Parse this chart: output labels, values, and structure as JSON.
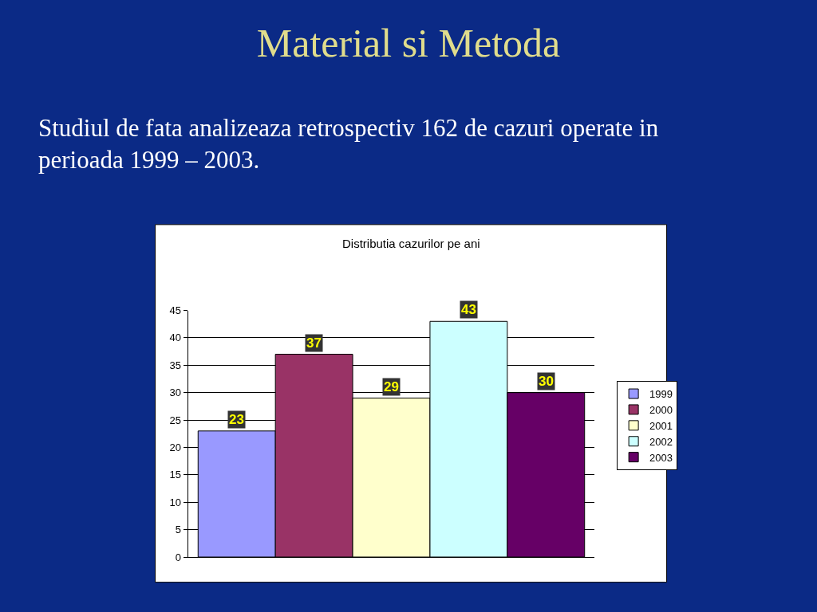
{
  "chart_data": {
    "type": "bar",
    "title": "Material si Metoda",
    "subtitle": "Studiul de fata analizeaza retrospectiv 162 de cazuri operate in perioada 1999 – 2003.",
    "annotations": [
      "Distributia cazurilor pe ani"
    ],
    "categories": [
      null
    ],
    "series": [
      {
        "name": "1999",
        "color": "#9999ff",
        "values": [
          23
        ]
      },
      {
        "name": "2000",
        "color": "#993366",
        "values": [
          37
        ]
      },
      {
        "name": "2001",
        "color": "#ffffcc",
        "values": [
          29
        ]
      },
      {
        "name": "2002",
        "color": "#ccffff",
        "values": [
          43
        ]
      },
      {
        "name": "2003",
        "color": "#660066",
        "values": [
          30
        ]
      }
    ],
    "ylim": [
      0,
      45
    ],
    "yticks": [
      0,
      5,
      10,
      15,
      20,
      25,
      30,
      35,
      40,
      45
    ],
    "grid": "y",
    "legend": "right",
    "data_labels": true
  }
}
